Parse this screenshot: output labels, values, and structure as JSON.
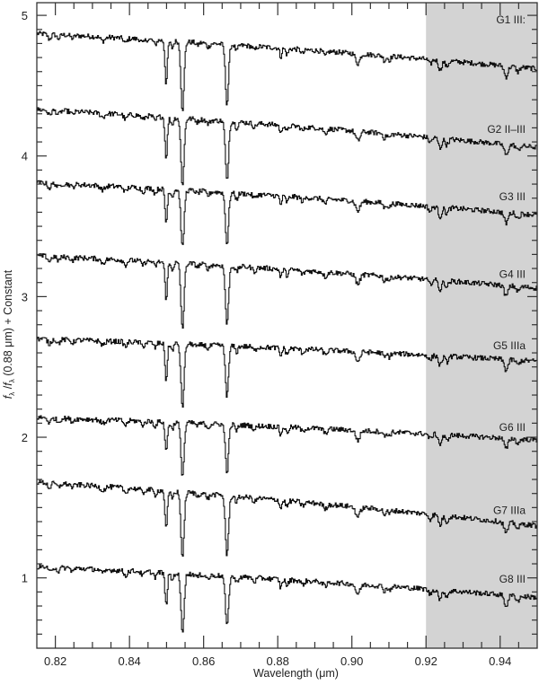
{
  "chart_data": {
    "type": "line",
    "title": "",
    "xlabel": "Wavelength (μm)",
    "ylabel": "f_λ / f_λ (0.88 μm) + Constant",
    "xlim": [
      0.815,
      0.95
    ],
    "ylim": [
      0.5,
      5.09
    ],
    "x_ticks": [
      0.82,
      0.84,
      0.86,
      0.88,
      0.9,
      0.92,
      0.94
    ],
    "x_tick_labels": [
      "0.82",
      "0.84",
      "0.86",
      "0.88",
      "0.90",
      "0.92",
      "0.94"
    ],
    "x_minor_step": 0.005,
    "y_ticks": [
      1,
      2,
      3,
      4,
      5
    ],
    "y_tick_labels": [
      "1",
      "2",
      "3",
      "4",
      "5"
    ],
    "y_minor_step": 0.1,
    "grid": false,
    "legend": "none (labels placed at right of each spectrum)",
    "shaded_region": {
      "x_start": 0.92,
      "x_end": 0.95,
      "color": "#d3d3d3"
    },
    "absorption_lines_um": [
      0.8498,
      0.8542,
      0.8662
    ],
    "series": [
      {
        "name": "G1 III:",
        "label_y": 4.97,
        "continuum_start": 4.87,
        "continuum_end": 4.62,
        "line_minima": [
          4.52,
          4.33,
          4.38
        ]
      },
      {
        "name": "G2 II–III",
        "label_y": 4.19,
        "continuum_start": 4.33,
        "continuum_end": 4.06,
        "line_minima": [
          3.99,
          3.8,
          3.83
        ]
      },
      {
        "name": "G3 III",
        "label_y": 3.71,
        "continuum_start": 3.81,
        "continuum_end": 3.58,
        "line_minima": [
          3.53,
          3.35,
          3.38
        ]
      },
      {
        "name": "G4 III",
        "label_y": 3.16,
        "continuum_start": 3.29,
        "continuum_end": 3.06,
        "line_minima": [
          2.99,
          2.78,
          2.81
        ]
      },
      {
        "name": "G5 IIIa",
        "label_y": 2.65,
        "continuum_start": 2.7,
        "continuum_end": 2.54,
        "line_minima": [
          2.41,
          2.22,
          2.3
        ]
      },
      {
        "name": "G6 III",
        "label_y": 2.07,
        "continuum_start": 2.14,
        "continuum_end": 1.98,
        "line_minima": [
          1.9,
          1.73,
          1.76
        ]
      },
      {
        "name": "G7 IIIa",
        "label_y": 1.48,
        "continuum_start": 1.68,
        "continuum_end": 1.37,
        "line_minima": [
          1.35,
          1.15,
          1.17
        ]
      },
      {
        "name": "G8 III",
        "label_y": 0.99,
        "continuum_start": 1.08,
        "continuum_end": 0.86,
        "line_minima": [
          0.81,
          0.62,
          0.66
        ]
      }
    ]
  },
  "colors": {
    "line": "#111111",
    "axis": "#333333",
    "shade": "#d3d3d3",
    "background": "#ffffff"
  }
}
